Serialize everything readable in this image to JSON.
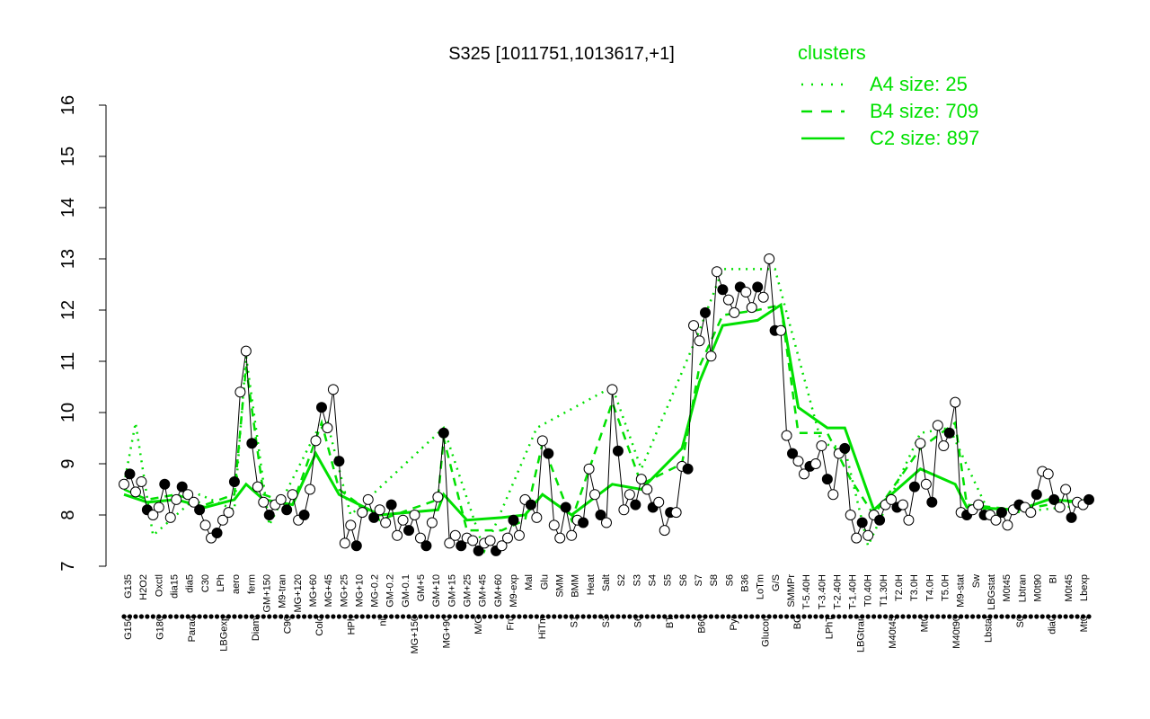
{
  "chart_data": {
    "type": "line",
    "title": "S325 [1011751,1013617,+1]",
    "xlabel": "",
    "ylabel": "",
    "ylim": [
      7,
      16
    ],
    "yticks": [
      7,
      8,
      9,
      10,
      11,
      12,
      13,
      14,
      15,
      16
    ],
    "grid": false,
    "legend_position": "top-right",
    "legend": {
      "title": "clusters",
      "entries": [
        {
          "label": "A4 size: 25",
          "style": "dotted"
        },
        {
          "label": "B4 size: 709",
          "style": "dashed"
        },
        {
          "label": "C2 size: 897",
          "style": "solid"
        }
      ]
    },
    "colors": {
      "line": "#000000",
      "cluster": "#00e000",
      "point_fill": "#ffffff",
      "point_fill_alt": "#000000"
    },
    "x_tick_labels_row1": [
      "G135",
      "H2O2",
      "Oxctl",
      "dia15",
      "dia5",
      "C30",
      "LPh",
      "aero",
      "ferm",
      "GM+150",
      "M9-tran",
      "MG+120",
      "MG+60",
      "MG+45",
      "MG+25",
      "MG+10",
      "MG-0.2",
      "GM-0.2",
      "GM-0.1",
      "GM+5",
      "GM+10",
      "GM+15",
      "GM+25",
      "GM+45",
      "GM+60",
      "M9-exp",
      "Mal",
      "Glu",
      "SMM",
      "BMM",
      "Heat",
      "Salt",
      "S2",
      "S3",
      "S4",
      "S5",
      "S6",
      "S7",
      "S8",
      "S6",
      "B36",
      "LoTm",
      "G/S",
      "SMMPr",
      "T-5.40H",
      "T-3.40H",
      "T-2.40H",
      "T-1.40H",
      "T0.40H",
      "T1.30H",
      "T2.0H",
      "T3.0H",
      "T4.0H",
      "T5.0H",
      "M9-stat",
      "Sw",
      "LBGstat",
      "M0t45",
      "Lbtran",
      "M0t90",
      "BI",
      "M0t45",
      "Lbexp"
    ],
    "x_tick_labels_row2": [
      "G150",
      "G180",
      "Paraq",
      "LBGexp",
      "Diami",
      "C90",
      "Cold",
      "HPh",
      "nit",
      "MG+150",
      "MG+90",
      "M/G",
      "Fru",
      "HiTm",
      "S1",
      "S3",
      "S6",
      "BT",
      "B60",
      "Pyr",
      "Glucon",
      "BC",
      "LPhT",
      "LBGtran",
      "M40t45",
      "Mt0",
      "M40t90",
      "Lbstat",
      "S0",
      "dia0",
      "Mt0"
    ],
    "points": [
      {
        "x": 1,
        "y": 8.6
      },
      {
        "x": 2,
        "y": 8.8
      },
      {
        "x": 3,
        "y": 8.45
      },
      {
        "x": 4,
        "y": 8.65
      },
      {
        "x": 5,
        "y": 8.1
      },
      {
        "x": 6,
        "y": 8.0
      },
      {
        "x": 7,
        "y": 8.15
      },
      {
        "x": 8,
        "y": 8.6
      },
      {
        "x": 9,
        "y": 7.95
      },
      {
        "x": 10,
        "y": 8.3
      },
      {
        "x": 11,
        "y": 8.55
      },
      {
        "x": 12,
        "y": 8.4
      },
      {
        "x": 13,
        "y": 8.25
      },
      {
        "x": 14,
        "y": 8.1
      },
      {
        "x": 15,
        "y": 7.8
      },
      {
        "x": 16,
        "y": 7.55
      },
      {
        "x": 17,
        "y": 7.65
      },
      {
        "x": 18,
        "y": 7.9
      },
      {
        "x": 19,
        "y": 8.05
      },
      {
        "x": 20,
        "y": 8.65
      },
      {
        "x": 21,
        "y": 10.4
      },
      {
        "x": 22,
        "y": 11.2
      },
      {
        "x": 23,
        "y": 9.4
      },
      {
        "x": 24,
        "y": 8.55
      },
      {
        "x": 25,
        "y": 8.25
      },
      {
        "x": 26,
        "y": 8.0
      },
      {
        "x": 27,
        "y": 8.2
      },
      {
        "x": 28,
        "y": 8.3
      },
      {
        "x": 29,
        "y": 8.1
      },
      {
        "x": 30,
        "y": 8.4
      },
      {
        "x": 31,
        "y": 7.9
      },
      {
        "x": 32,
        "y": 8.0
      },
      {
        "x": 33,
        "y": 8.5
      },
      {
        "x": 34,
        "y": 9.45
      },
      {
        "x": 35,
        "y": 10.1
      },
      {
        "x": 36,
        "y": 9.7
      },
      {
        "x": 37,
        "y": 10.45
      },
      {
        "x": 38,
        "y": 9.05
      },
      {
        "x": 39,
        "y": 7.45
      },
      {
        "x": 40,
        "y": 7.8
      },
      {
        "x": 41,
        "y": 7.4
      },
      {
        "x": 42,
        "y": 8.05
      },
      {
        "x": 43,
        "y": 8.3
      },
      {
        "x": 44,
        "y": 7.95
      },
      {
        "x": 45,
        "y": 8.1
      },
      {
        "x": 46,
        "y": 7.85
      },
      {
        "x": 47,
        "y": 8.2
      },
      {
        "x": 48,
        "y": 7.6
      },
      {
        "x": 49,
        "y": 7.9
      },
      {
        "x": 50,
        "y": 7.7
      },
      {
        "x": 51,
        "y": 8.0
      },
      {
        "x": 52,
        "y": 7.55
      },
      {
        "x": 53,
        "y": 7.4
      },
      {
        "x": 54,
        "y": 7.85
      },
      {
        "x": 55,
        "y": 8.35
      },
      {
        "x": 56,
        "y": 9.6
      },
      {
        "x": 57,
        "y": 7.45
      },
      {
        "x": 58,
        "y": 7.6
      },
      {
        "x": 59,
        "y": 7.4
      },
      {
        "x": 60,
        "y": 7.55
      },
      {
        "x": 61,
        "y": 7.5
      },
      {
        "x": 62,
        "y": 7.3
      },
      {
        "x": 63,
        "y": 7.45
      },
      {
        "x": 64,
        "y": 7.5
      },
      {
        "x": 65,
        "y": 7.3
      },
      {
        "x": 66,
        "y": 7.4
      },
      {
        "x": 67,
        "y": 7.55
      },
      {
        "x": 68,
        "y": 7.9
      },
      {
        "x": 69,
        "y": 7.6
      },
      {
        "x": 70,
        "y": 8.3
      },
      {
        "x": 71,
        "y": 8.2
      },
      {
        "x": 72,
        "y": 7.95
      },
      {
        "x": 73,
        "y": 9.45
      },
      {
        "x": 74,
        "y": 9.2
      },
      {
        "x": 75,
        "y": 7.8
      },
      {
        "x": 76,
        "y": 7.55
      },
      {
        "x": 77,
        "y": 8.15
      },
      {
        "x": 78,
        "y": 7.6
      },
      {
        "x": 79,
        "y": 7.9
      },
      {
        "x": 80,
        "y": 7.85
      },
      {
        "x": 81,
        "y": 8.9
      },
      {
        "x": 82,
        "y": 8.4
      },
      {
        "x": 83,
        "y": 8.0
      },
      {
        "x": 84,
        "y": 7.85
      },
      {
        "x": 85,
        "y": 10.45
      },
      {
        "x": 86,
        "y": 9.25
      },
      {
        "x": 87,
        "y": 8.1
      },
      {
        "x": 88,
        "y": 8.4
      },
      {
        "x": 89,
        "y": 8.2
      },
      {
        "x": 90,
        "y": 8.7
      },
      {
        "x": 91,
        "y": 8.5
      },
      {
        "x": 92,
        "y": 8.15
      },
      {
        "x": 93,
        "y": 8.25
      },
      {
        "x": 94,
        "y": 7.7
      },
      {
        "x": 95,
        "y": 8.05
      },
      {
        "x": 96,
        "y": 8.05
      },
      {
        "x": 97,
        "y": 8.95
      },
      {
        "x": 98,
        "y": 8.9
      },
      {
        "x": 99,
        "y": 11.7
      },
      {
        "x": 100,
        "y": 11.4
      },
      {
        "x": 101,
        "y": 11.95
      },
      {
        "x": 102,
        "y": 11.1
      },
      {
        "x": 103,
        "y": 12.75
      },
      {
        "x": 104,
        "y": 12.4
      },
      {
        "x": 105,
        "y": 12.2
      },
      {
        "x": 106,
        "y": 11.95
      },
      {
        "x": 107,
        "y": 12.45
      },
      {
        "x": 108,
        "y": 12.35
      },
      {
        "x": 109,
        "y": 12.05
      },
      {
        "x": 110,
        "y": 12.45
      },
      {
        "x": 111,
        "y": 12.25
      },
      {
        "x": 112,
        "y": 13.0
      },
      {
        "x": 113,
        "y": 11.6
      },
      {
        "x": 114,
        "y": 11.6
      },
      {
        "x": 115,
        "y": 9.55
      },
      {
        "x": 116,
        "y": 9.2
      },
      {
        "x": 117,
        "y": 9.05
      },
      {
        "x": 118,
        "y": 8.8
      },
      {
        "x": 119,
        "y": 8.95
      },
      {
        "x": 120,
        "y": 9.0
      },
      {
        "x": 121,
        "y": 9.35
      },
      {
        "x": 122,
        "y": 8.7
      },
      {
        "x": 123,
        "y": 8.4
      },
      {
        "x": 124,
        "y": 9.2
      },
      {
        "x": 125,
        "y": 9.3
      },
      {
        "x": 126,
        "y": 8.0
      },
      {
        "x": 127,
        "y": 7.55
      },
      {
        "x": 128,
        "y": 7.85
      },
      {
        "x": 129,
        "y": 7.6
      },
      {
        "x": 130,
        "y": 8.0
      },
      {
        "x": 131,
        "y": 7.9
      },
      {
        "x": 132,
        "y": 8.2
      },
      {
        "x": 133,
        "y": 8.3
      },
      {
        "x": 134,
        "y": 8.15
      },
      {
        "x": 135,
        "y": 8.2
      },
      {
        "x": 136,
        "y": 7.9
      },
      {
        "x": 137,
        "y": 8.55
      },
      {
        "x": 138,
        "y": 9.4
      },
      {
        "x": 139,
        "y": 8.6
      },
      {
        "x": 140,
        "y": 8.25
      },
      {
        "x": 141,
        "y": 9.75
      },
      {
        "x": 142,
        "y": 9.35
      },
      {
        "x": 143,
        "y": 9.6
      },
      {
        "x": 144,
        "y": 10.2
      },
      {
        "x": 145,
        "y": 8.05
      },
      {
        "x": 146,
        "y": 8.0
      },
      {
        "x": 147,
        "y": 8.1
      },
      {
        "x": 148,
        "y": 8.2
      },
      {
        "x": 149,
        "y": 8.0
      },
      {
        "x": 150,
        "y": 8.0
      },
      {
        "x": 151,
        "y": 7.9
      },
      {
        "x": 152,
        "y": 8.05
      },
      {
        "x": 153,
        "y": 7.8
      },
      {
        "x": 154,
        "y": 8.1
      },
      {
        "x": 155,
        "y": 8.2
      },
      {
        "x": 156,
        "y": 8.15
      },
      {
        "x": 157,
        "y": 8.05
      },
      {
        "x": 158,
        "y": 8.4
      },
      {
        "x": 159,
        "y": 8.85
      },
      {
        "x": 160,
        "y": 8.8
      },
      {
        "x": 161,
        "y": 8.3
      },
      {
        "x": 162,
        "y": 8.15
      },
      {
        "x": 163,
        "y": 8.5
      },
      {
        "x": 164,
        "y": 7.95
      },
      {
        "x": 165,
        "y": 8.25
      },
      {
        "x": 166,
        "y": 8.2
      },
      {
        "x": 167,
        "y": 8.3
      }
    ],
    "series": [
      {
        "name": "A4 size: 25",
        "values": [
          {
            "x": 1,
            "y": 8.6
          },
          {
            "x": 3,
            "y": 9.8
          },
          {
            "x": 6,
            "y": 7.6
          },
          {
            "x": 14,
            "y": 8.4
          },
          {
            "x": 20,
            "y": 8.1
          },
          {
            "x": 22,
            "y": 11.1
          },
          {
            "x": 26,
            "y": 7.8
          },
          {
            "x": 34,
            "y": 9.6
          },
          {
            "x": 36,
            "y": 9.8
          },
          {
            "x": 40,
            "y": 8.0
          },
          {
            "x": 56,
            "y": 9.7
          },
          {
            "x": 63,
            "y": 7.3
          },
          {
            "x": 72,
            "y": 9.7
          },
          {
            "x": 85,
            "y": 10.5
          },
          {
            "x": 90,
            "y": 8.9
          },
          {
            "x": 100,
            "y": 11.6
          },
          {
            "x": 104,
            "y": 12.8
          },
          {
            "x": 113,
            "y": 12.8
          },
          {
            "x": 121,
            "y": 9.4
          },
          {
            "x": 125,
            "y": 9.3
          },
          {
            "x": 129,
            "y": 7.4
          },
          {
            "x": 138,
            "y": 9.6
          },
          {
            "x": 143,
            "y": 9.7
          },
          {
            "x": 150,
            "y": 8.0
          },
          {
            "x": 167,
            "y": 8.2
          }
        ]
      },
      {
        "name": "B4 size: 709",
        "values": [
          {
            "x": 1,
            "y": 8.5
          },
          {
            "x": 5,
            "y": 8.3
          },
          {
            "x": 10,
            "y": 8.4
          },
          {
            "x": 15,
            "y": 8.2
          },
          {
            "x": 20,
            "y": 8.4
          },
          {
            "x": 22,
            "y": 10.9
          },
          {
            "x": 25,
            "y": 8.4
          },
          {
            "x": 30,
            "y": 8.2
          },
          {
            "x": 35,
            "y": 9.8
          },
          {
            "x": 38,
            "y": 8.5
          },
          {
            "x": 45,
            "y": 7.9
          },
          {
            "x": 55,
            "y": 8.3
          },
          {
            "x": 56,
            "y": 9.5
          },
          {
            "x": 60,
            "y": 7.7
          },
          {
            "x": 66,
            "y": 7.7
          },
          {
            "x": 70,
            "y": 7.9
          },
          {
            "x": 73,
            "y": 9.4
          },
          {
            "x": 78,
            "y": 7.9
          },
          {
            "x": 85,
            "y": 10.2
          },
          {
            "x": 90,
            "y": 8.6
          },
          {
            "x": 97,
            "y": 9.0
          },
          {
            "x": 100,
            "y": 10.9
          },
          {
            "x": 104,
            "y": 11.9
          },
          {
            "x": 110,
            "y": 12.0
          },
          {
            "x": 114,
            "y": 12.1
          },
          {
            "x": 117,
            "y": 9.6
          },
          {
            "x": 122,
            "y": 9.6
          },
          {
            "x": 126,
            "y": 8.7
          },
          {
            "x": 130,
            "y": 8.0
          },
          {
            "x": 138,
            "y": 9.3
          },
          {
            "x": 144,
            "y": 9.8
          },
          {
            "x": 146,
            "y": 8.2
          },
          {
            "x": 155,
            "y": 8.1
          },
          {
            "x": 160,
            "y": 8.2
          },
          {
            "x": 167,
            "y": 8.3
          }
        ]
      },
      {
        "name": "C2 size: 897",
        "values": [
          {
            "x": 1,
            "y": 8.4
          },
          {
            "x": 5,
            "y": 8.25
          },
          {
            "x": 10,
            "y": 8.3
          },
          {
            "x": 15,
            "y": 8.15
          },
          {
            "x": 20,
            "y": 8.3
          },
          {
            "x": 22,
            "y": 8.6
          },
          {
            "x": 25,
            "y": 8.3
          },
          {
            "x": 30,
            "y": 8.2
          },
          {
            "x": 34,
            "y": 9.2
          },
          {
            "x": 38,
            "y": 8.4
          },
          {
            "x": 45,
            "y": 8.0
          },
          {
            "x": 55,
            "y": 8.1
          },
          {
            "x": 56,
            "y": 8.4
          },
          {
            "x": 60,
            "y": 7.9
          },
          {
            "x": 66,
            "y": 7.95
          },
          {
            "x": 70,
            "y": 8.0
          },
          {
            "x": 73,
            "y": 8.4
          },
          {
            "x": 78,
            "y": 8.0
          },
          {
            "x": 85,
            "y": 8.6
          },
          {
            "x": 90,
            "y": 8.5
          },
          {
            "x": 97,
            "y": 9.3
          },
          {
            "x": 100,
            "y": 10.6
          },
          {
            "x": 104,
            "y": 11.7
          },
          {
            "x": 110,
            "y": 11.8
          },
          {
            "x": 114,
            "y": 12.1
          },
          {
            "x": 117,
            "y": 10.1
          },
          {
            "x": 122,
            "y": 9.7
          },
          {
            "x": 125,
            "y": 9.7
          },
          {
            "x": 130,
            "y": 8.1
          },
          {
            "x": 138,
            "y": 8.9
          },
          {
            "x": 142,
            "y": 8.7
          },
          {
            "x": 144,
            "y": 8.6
          },
          {
            "x": 146,
            "y": 8.15
          },
          {
            "x": 155,
            "y": 8.1
          },
          {
            "x": 160,
            "y": 8.3
          },
          {
            "x": 167,
            "y": 8.25
          }
        ]
      }
    ]
  }
}
